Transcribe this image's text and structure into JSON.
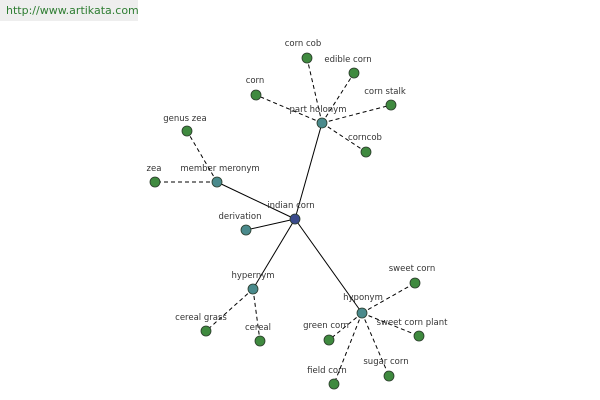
{
  "header": {
    "url": "http://www.artikata.com"
  },
  "nodes": [
    {
      "label": "indian corn"
    },
    {
      "label": "part holonym"
    },
    {
      "label": "member meronym"
    },
    {
      "label": "derivation"
    },
    {
      "label": "hypernym"
    },
    {
      "label": "hyponym"
    },
    {
      "label": "corn cob"
    },
    {
      "label": "edible corn"
    },
    {
      "label": "corn"
    },
    {
      "label": "corn stalk"
    },
    {
      "label": "corncob"
    },
    {
      "label": "genus zea"
    },
    {
      "label": "zea"
    },
    {
      "label": "cereal grass"
    },
    {
      "label": "cereal"
    },
    {
      "label": "sweet corn"
    },
    {
      "label": "green corn"
    },
    {
      "label": "sweet corn plant"
    },
    {
      "label": "field corn"
    },
    {
      "label": "sugar corn"
    }
  ]
}
